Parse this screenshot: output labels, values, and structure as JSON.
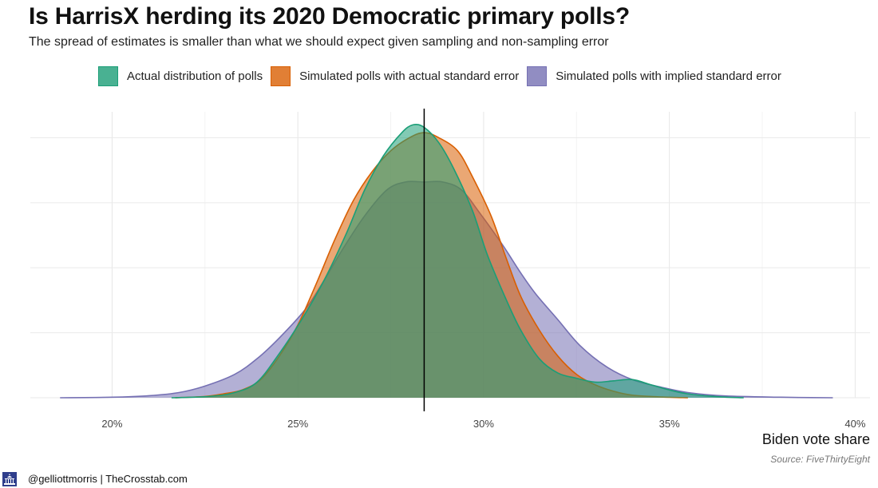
{
  "header": {
    "title": "Is HarrisX herding its 2020 Democratic primary polls?",
    "subtitle": "The spread of estimates is smaller than what we should expect given sampling and non-sampling error"
  },
  "legend": [
    {
      "label": "Actual distribution of polls",
      "fill": "#1b9e77",
      "stroke": "#1b9e77"
    },
    {
      "label": "Simulated polls with actual standard error",
      "fill": "#d95f02",
      "stroke": "#d95f02"
    },
    {
      "label": "Simulated polls with implied standard error",
      "fill": "#7570b3",
      "stroke": "#7570b3"
    }
  ],
  "chart_data": {
    "type": "area",
    "title": "Is HarrisX herding its 2020 Democratic primary polls?",
    "subtitle": "The spread of estimates is smaller than what we should expect given sampling and non-sampling error",
    "xlabel": "Biden vote share",
    "ylabel": "",
    "xlim": [
      17.8,
      40.4
    ],
    "ylim": [
      0,
      1.1
    ],
    "x_ticks": [
      20,
      25,
      30,
      35,
      40
    ],
    "x_tick_labels": [
      "20%",
      "25%",
      "30%",
      "35%",
      "40%"
    ],
    "grid": true,
    "legend_position": "top",
    "reference_line": {
      "x": 28.4,
      "color": "#000000"
    },
    "series": [
      {
        "name": "Simulated polls with implied standard error",
        "color": "#7570b3",
        "points": [
          [
            18.6,
            0
          ],
          [
            20,
            0.002
          ],
          [
            21,
            0.008
          ],
          [
            21.8,
            0.02
          ],
          [
            22.5,
            0.045
          ],
          [
            23.3,
            0.09
          ],
          [
            23.9,
            0.15
          ],
          [
            24.5,
            0.23
          ],
          [
            25.2,
            0.34
          ],
          [
            25.7,
            0.45
          ],
          [
            26.2,
            0.57
          ],
          [
            26.8,
            0.7
          ],
          [
            27.4,
            0.8
          ],
          [
            27.9,
            0.83
          ],
          [
            28.4,
            0.83
          ],
          [
            28.9,
            0.83
          ],
          [
            29.4,
            0.8
          ],
          [
            29.9,
            0.71
          ],
          [
            30.5,
            0.59
          ],
          [
            31,
            0.48
          ],
          [
            31.4,
            0.4
          ],
          [
            32,
            0.3
          ],
          [
            32.6,
            0.2
          ],
          [
            33.3,
            0.12
          ],
          [
            34,
            0.07
          ],
          [
            34.8,
            0.04
          ],
          [
            35.5,
            0.02
          ],
          [
            36.5,
            0.007
          ],
          [
            38,
            0.002
          ],
          [
            39.4,
            0
          ]
        ]
      },
      {
        "name": "Simulated polls with actual standard error",
        "color": "#d95f02",
        "points": [
          [
            21.7,
            0
          ],
          [
            22.5,
            0.005
          ],
          [
            23,
            0.015
          ],
          [
            23.5,
            0.03
          ],
          [
            24,
            0.07
          ],
          [
            24.5,
            0.16
          ],
          [
            25,
            0.28
          ],
          [
            25.5,
            0.44
          ],
          [
            26,
            0.61
          ],
          [
            26.5,
            0.76
          ],
          [
            27,
            0.87
          ],
          [
            27.5,
            0.95
          ],
          [
            28,
            1.0
          ],
          [
            28.4,
            1.02
          ],
          [
            28.8,
            1.0
          ],
          [
            29.3,
            0.95
          ],
          [
            29.7,
            0.85
          ],
          [
            30.2,
            0.7
          ],
          [
            30.6,
            0.54
          ],
          [
            31,
            0.39
          ],
          [
            31.5,
            0.26
          ],
          [
            32,
            0.16
          ],
          [
            32.5,
            0.09
          ],
          [
            33,
            0.05
          ],
          [
            33.5,
            0.025
          ],
          [
            34,
            0.01
          ],
          [
            34.8,
            0.003
          ],
          [
            35.5,
            0
          ]
        ]
      },
      {
        "name": "Actual distribution of polls",
        "color": "#1b9e77",
        "points": [
          [
            21.6,
            0
          ],
          [
            22.6,
            0.005
          ],
          [
            23.3,
            0.02
          ],
          [
            23.9,
            0.06
          ],
          [
            24.5,
            0.17
          ],
          [
            25.1,
            0.3
          ],
          [
            25.7,
            0.45
          ],
          [
            26.3,
            0.63
          ],
          [
            26.8,
            0.8
          ],
          [
            27.3,
            0.93
          ],
          [
            27.8,
            1.02
          ],
          [
            28.1,
            1.05
          ],
          [
            28.4,
            1.04
          ],
          [
            28.8,
            0.98
          ],
          [
            29.2,
            0.88
          ],
          [
            29.7,
            0.72
          ],
          [
            30.1,
            0.55
          ],
          [
            30.6,
            0.38
          ],
          [
            31,
            0.26
          ],
          [
            31.5,
            0.15
          ],
          [
            32,
            0.095
          ],
          [
            32.5,
            0.075
          ],
          [
            33,
            0.06
          ],
          [
            33.5,
            0.065
          ],
          [
            34,
            0.07
          ],
          [
            34.5,
            0.05
          ],
          [
            35,
            0.03
          ],
          [
            35.5,
            0.015
          ],
          [
            36.3,
            0.004
          ],
          [
            37,
            0
          ]
        ]
      }
    ]
  },
  "caption": {
    "source": "Source: FiveThirtyEight"
  },
  "footer": {
    "credit": "@gelliottmorris | TheCrosstab.com",
    "logo_icon": "capitol-icon"
  }
}
